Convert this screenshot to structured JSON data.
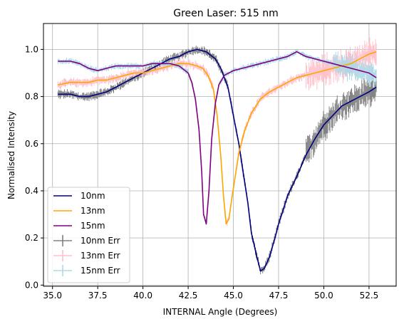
{
  "chart_data": {
    "type": "line",
    "title": "Green Laser: 515 nm",
    "xlabel": "INTERNAL Angle (Degrees)",
    "ylabel": "Normalised Intensity",
    "xlim": [
      34.5,
      54.0
    ],
    "ylim": [
      -0.005,
      1.11
    ],
    "xticks": [
      35.0,
      37.5,
      40.0,
      42.5,
      45.0,
      47.5,
      50.0,
      52.5
    ],
    "xtick_labels": [
      "35.0",
      "37.5",
      "40.0",
      "42.5",
      "45.0",
      "47.5",
      "50.0",
      "52.5"
    ],
    "yticks": [
      0.0,
      0.2,
      0.4,
      0.6,
      0.8,
      1.0
    ],
    "ytick_labels": [
      "0.0",
      "0.2",
      "0.4",
      "0.6",
      "0.8",
      "1.0"
    ],
    "grid": true,
    "legend_position": "lower-left",
    "series": [
      {
        "name": "10nm",
        "color": "#000080",
        "x": [
          35.3,
          36.0,
          36.5,
          37.0,
          37.5,
          38.0,
          38.5,
          39.0,
          39.5,
          40.0,
          40.5,
          41.0,
          41.5,
          42.0,
          42.5,
          43.0,
          43.5,
          44.0,
          44.3,
          44.7,
          45.0,
          45.3,
          45.5,
          45.8,
          46.0,
          46.3,
          46.5,
          46.7,
          47.0,
          47.3,
          47.5,
          47.8,
          48.0,
          48.5,
          49.0,
          49.5,
          50.0,
          50.5,
          51.0,
          51.5,
          52.0,
          52.5,
          52.9
        ],
        "y": [
          0.81,
          0.81,
          0.8,
          0.8,
          0.81,
          0.82,
          0.84,
          0.86,
          0.88,
          0.9,
          0.92,
          0.94,
          0.96,
          0.97,
          0.99,
          1.0,
          0.99,
          0.96,
          0.92,
          0.84,
          0.72,
          0.6,
          0.5,
          0.35,
          0.22,
          0.12,
          0.06,
          0.07,
          0.12,
          0.2,
          0.26,
          0.33,
          0.38,
          0.46,
          0.55,
          0.62,
          0.68,
          0.72,
          0.76,
          0.78,
          0.8,
          0.82,
          0.84
        ]
      },
      {
        "name": "13nm",
        "color": "#FFA500",
        "x": [
          35.3,
          36.0,
          36.5,
          37.0,
          37.5,
          38.0,
          38.5,
          39.0,
          39.5,
          40.0,
          40.5,
          41.0,
          41.5,
          42.0,
          42.5,
          43.0,
          43.3,
          43.6,
          43.9,
          44.1,
          44.3,
          44.45,
          44.6,
          44.75,
          44.9,
          45.1,
          45.3,
          45.6,
          46.0,
          46.5,
          47.0,
          47.5,
          48.0,
          48.5,
          49.0,
          49.5,
          50.0,
          50.5,
          51.0,
          51.5,
          52.0,
          52.5,
          52.9
        ],
        "y": [
          0.85,
          0.86,
          0.86,
          0.86,
          0.87,
          0.87,
          0.88,
          0.89,
          0.9,
          0.9,
          0.91,
          0.92,
          0.93,
          0.94,
          0.94,
          0.93,
          0.92,
          0.89,
          0.83,
          0.72,
          0.55,
          0.38,
          0.26,
          0.28,
          0.36,
          0.46,
          0.56,
          0.65,
          0.73,
          0.79,
          0.82,
          0.84,
          0.86,
          0.88,
          0.89,
          0.9,
          0.91,
          0.92,
          0.93,
          0.94,
          0.96,
          0.98,
          0.99
        ]
      },
      {
        "name": "15nm",
        "color": "#800080",
        "x": [
          35.3,
          36.0,
          36.5,
          37.0,
          37.5,
          38.0,
          38.5,
          39.0,
          39.5,
          40.0,
          40.5,
          41.0,
          41.5,
          42.0,
          42.5,
          42.7,
          42.9,
          43.1,
          43.25,
          43.35,
          43.5,
          43.65,
          43.8,
          44.0,
          44.2,
          44.5,
          45.0,
          45.5,
          46.0,
          46.5,
          47.0,
          47.5,
          48.0,
          48.5,
          49.0,
          49.5,
          50.0,
          50.5,
          51.0,
          51.5,
          52.0,
          52.5,
          52.9
        ],
        "y": [
          0.95,
          0.95,
          0.94,
          0.92,
          0.91,
          0.92,
          0.93,
          0.93,
          0.93,
          0.93,
          0.94,
          0.94,
          0.94,
          0.93,
          0.9,
          0.86,
          0.79,
          0.66,
          0.48,
          0.3,
          0.26,
          0.4,
          0.62,
          0.77,
          0.85,
          0.89,
          0.91,
          0.92,
          0.93,
          0.94,
          0.95,
          0.96,
          0.97,
          0.99,
          0.97,
          0.96,
          0.95,
          0.94,
          0.93,
          0.92,
          0.91,
          0.9,
          0.88
        ]
      }
    ],
    "error_series": [
      {
        "name": "10nm Err",
        "color": "#808080",
        "follows": "10nm",
        "x_start": 35.3,
        "x_end": 52.9,
        "amplitude_low": 0.015,
        "amplitude_high_start": 49.0,
        "amplitude_high": 0.05
      },
      {
        "name": "13nm Err",
        "color": "#FFC0CB",
        "follows": "13nm",
        "x_start": 35.3,
        "x_end": 52.9,
        "amplitude_low": 0.015,
        "amplitude_high_start": 49.0,
        "amplitude_high": 0.05
      },
      {
        "name": "15nm Err",
        "color": "#ADD8E6",
        "follows": "15nm",
        "x_start": 35.3,
        "x_end": 52.9,
        "amplitude_low": 0.01,
        "amplitude_high_start": 50.5,
        "amplitude_high": 0.04
      }
    ]
  }
}
